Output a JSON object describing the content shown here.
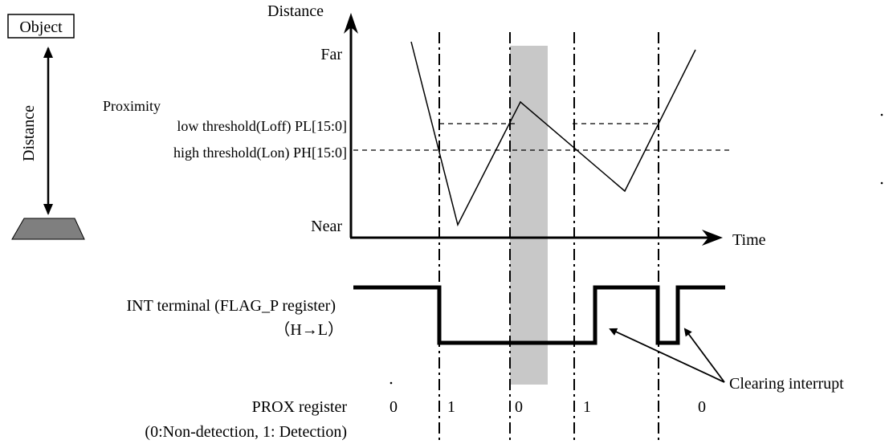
{
  "object": {
    "label": "Object"
  },
  "distance_indicator": {
    "label": "Distance"
  },
  "graph": {
    "y_axis_label": "Distance",
    "x_axis_label": "Time",
    "far_label": "Far",
    "near_label": "Near",
    "proximity_label": "Proximity",
    "low_threshold_label": "low threshold(Loff) PL[15:0]",
    "high_threshold_label": "high threshold(Lon) PH[15:0]"
  },
  "int_signal": {
    "label": "INT terminal (FLAG_P register)",
    "sublabel": "（H→L）"
  },
  "annotation": {
    "label": "Clearing interrupt"
  },
  "prox": {
    "label": "PROX register",
    "sublabel": "(0:Non-detection, 1: Detection)",
    "values": [
      "0",
      "1",
      "0",
      "1",
      "0"
    ]
  },
  "colors": {
    "line": "#000000",
    "shaded_region": "#c8c8c8",
    "object_base": "#7f7f7f"
  }
}
